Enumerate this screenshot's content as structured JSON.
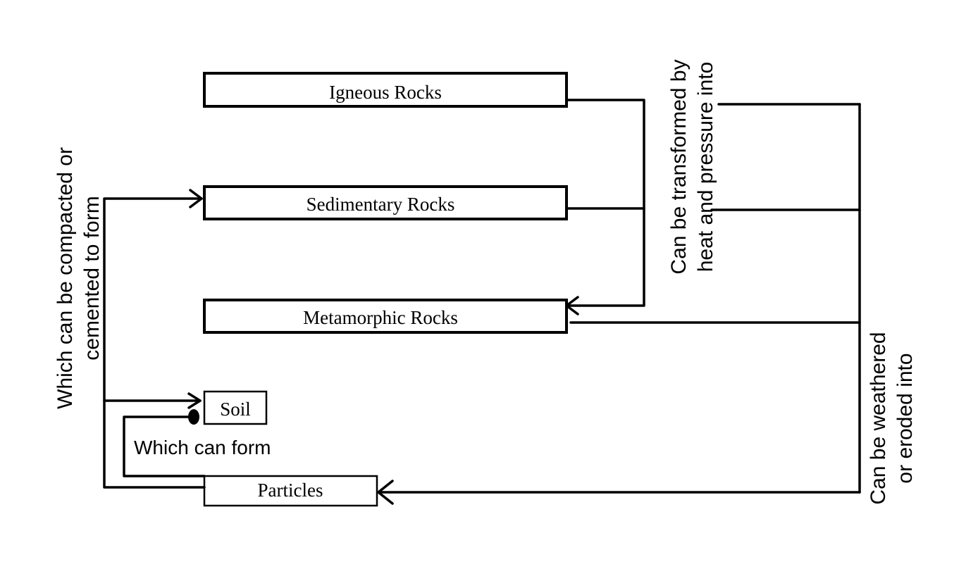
{
  "nodes": {
    "igneous": "Igneous Rocks",
    "sedimentary": "Sedimentary Rocks",
    "metamorphic": "Metamorphic Rocks",
    "soil": "Soil",
    "particles": "Particles"
  },
  "labels": {
    "compacted_line1": "Which can be compacted or",
    "compacted_line2": "cemented to form",
    "transformed_line1": "Can be transformed by",
    "transformed_line2": "heat and pressure into",
    "weathered_line1": "Can be weathered",
    "weathered_line2": "or eroded into",
    "soil_form": "Which can form"
  }
}
